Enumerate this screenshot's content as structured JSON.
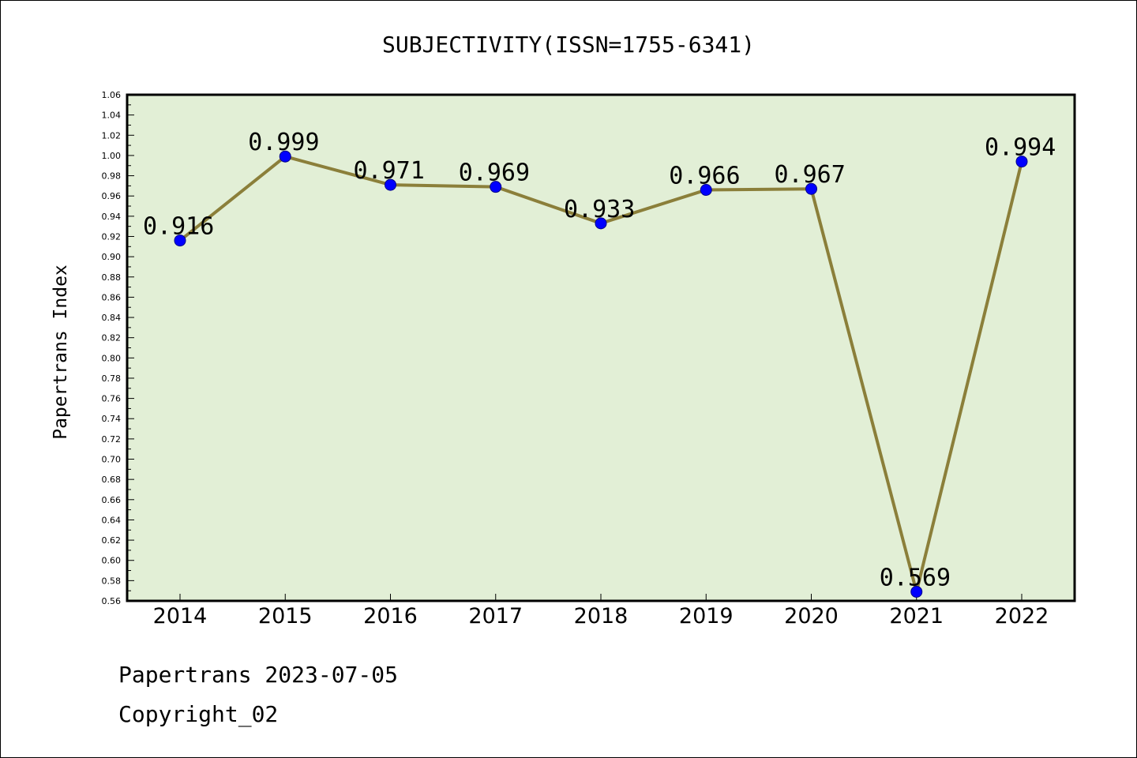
{
  "chart_data": {
    "type": "line",
    "title": "SUBJECTIVITY(ISSN=1755-6341)",
    "xlabel": "",
    "ylabel": "Papertrans Index",
    "categories": [
      "2014",
      "2015",
      "2016",
      "2017",
      "2018",
      "2019",
      "2020",
      "2021",
      "2022"
    ],
    "series": [
      {
        "values": [
          0.916,
          0.999,
          0.971,
          0.969,
          0.933,
          0.966,
          0.967,
          0.569,
          0.994
        ],
        "labels": [
          "0.916",
          "0.999",
          "0.971",
          "0.969",
          "0.933",
          "0.966",
          "0.967",
          "0.569",
          "0.994"
        ]
      }
    ],
    "ylim": [
      0.56,
      1.06
    ],
    "yticks": [
      "0.56",
      "0.58",
      "0.60",
      "0.62",
      "0.64",
      "0.66",
      "0.68",
      "0.70",
      "0.72",
      "0.74",
      "0.76",
      "0.78",
      "0.80",
      "0.82",
      "0.84",
      "0.86",
      "0.88",
      "0.90",
      "0.92",
      "0.94",
      "0.96",
      "0.98",
      "1.00",
      "1.02",
      "1.04",
      "1.06"
    ],
    "grid": false,
    "colors": {
      "plot_background": "#e2efd6",
      "line": "#8b7f3a",
      "marker": "#0000ff"
    }
  },
  "footer": {
    "line1": "Papertrans 2023-07-05",
    "line2": "Copyright_02"
  }
}
